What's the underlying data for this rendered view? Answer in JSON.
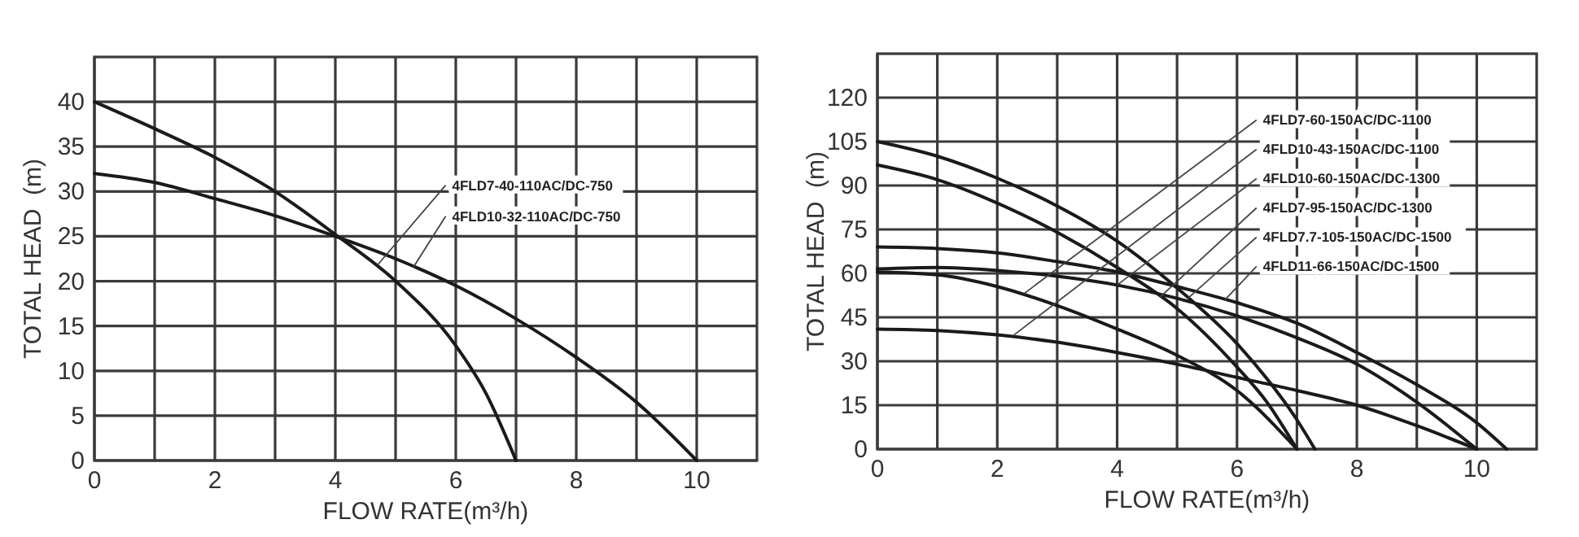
{
  "chart_data": [
    {
      "type": "line",
      "xlabel": "FLOW RATE(m³/h)",
      "ylabel": "TOTAL HEAD  (m)",
      "xlim": [
        0,
        11
      ],
      "ylim": [
        0,
        45
      ],
      "xticks": [
        0,
        {
          "value": 1,
          "label": null
        },
        2,
        {
          "value": 3,
          "label": null
        },
        4,
        {
          "value": 5,
          "label": null
        },
        6,
        {
          "value": 7,
          "label": null
        },
        8,
        {
          "value": 9,
          "label": null
        },
        10
      ],
      "yticks": [
        0,
        5,
        10,
        15,
        20,
        25,
        30,
        35,
        40
      ],
      "grid": true,
      "line_style": "solid",
      "series": [
        {
          "color": "#1a1a1a",
          "x": [
            0,
            1,
            2,
            3,
            4,
            5,
            6,
            6.5,
            7
          ],
          "values": [
            40,
            37,
            33.8,
            30,
            25.2,
            20,
            12.8,
            7.5,
            0
          ]
        },
        {
          "color": "#1a1a1a",
          "x": [
            0,
            1,
            2,
            3,
            4,
            5,
            6,
            7,
            8,
            9,
            10
          ],
          "values": [
            32,
            31,
            29.2,
            27.3,
            25,
            22.5,
            19.5,
            15.8,
            11.5,
            6.5,
            0
          ]
        }
      ],
      "annotations": [
        {
          "text": "4FLD7-40-110AC/DC-750",
          "x": 4.7,
          "y": 21.8
        },
        {
          "text": "4FLD10-32-110AC/DC-750",
          "x": 5.3,
          "y": 21.6
        }
      ]
    },
    {
      "type": "line",
      "xlabel": "FLOW RATE(m³/h)",
      "ylabel": "TOTAL HEAD  (m)",
      "xlim": [
        0,
        11
      ],
      "ylim": [
        0,
        135
      ],
      "xticks": [
        0,
        {
          "value": 1,
          "label": null
        },
        2,
        {
          "value": 3,
          "label": null
        },
        4,
        {
          "value": 5,
          "label": null
        },
        6,
        {
          "value": 7,
          "label": null
        },
        8,
        {
          "value": 9,
          "label": null
        },
        10
      ],
      "yticks": [
        0,
        15,
        30,
        45,
        60,
        75,
        90,
        105,
        120
      ],
      "grid": true,
      "line_style": "solid",
      "series": [
        {
          "color": "#1a1a1a",
          "x": [
            0,
            1,
            2,
            3,
            4,
            5,
            6,
            6.5,
            7,
            7.3
          ],
          "values": [
            105,
            100,
            92.5,
            83,
            71,
            55,
            36,
            24,
            10,
            0
          ]
        },
        {
          "color": "#1a1a1a",
          "x": [
            0,
            1,
            2,
            3,
            4,
            5,
            6,
            6.5,
            7
          ],
          "values": [
            97,
            92,
            84,
            74,
            62,
            48,
            28,
            16,
            0
          ]
        },
        {
          "color": "#1a1a1a",
          "x": [
            0,
            1,
            2,
            3,
            4,
            5,
            6,
            7,
            8,
            9,
            10,
            10.5
          ],
          "values": [
            69,
            68.5,
            67,
            64,
            60.5,
            55.5,
            50,
            43,
            33,
            22,
            9,
            0
          ]
        },
        {
          "color": "#1a1a1a",
          "x": [
            0,
            1,
            2,
            3,
            4,
            5,
            6,
            7,
            8,
            9,
            10
          ],
          "values": [
            61.5,
            62,
            61,
            59,
            56,
            51.5,
            45.5,
            38,
            29,
            16,
            0
          ]
        },
        {
          "color": "#1a1a1a",
          "x": [
            0,
            1,
            2,
            3,
            4,
            5,
            6,
            7
          ],
          "values": [
            60.5,
            59.5,
            55.5,
            49,
            41,
            32,
            20,
            0
          ]
        },
        {
          "color": "#1a1a1a",
          "x": [
            0,
            1,
            2,
            3,
            4,
            5,
            6,
            7,
            8,
            9,
            10
          ],
          "values": [
            41,
            40.5,
            39,
            36.5,
            33,
            29,
            24.5,
            20,
            15,
            8,
            0
          ]
        }
      ],
      "annotations": [
        {
          "text": "4FLD7-60-150AC/DC-1100",
          "x": 2.44,
          "y": 53
        },
        {
          "text": "4FLD10-43-150AC/DC-1100",
          "x": 2.28,
          "y": 39
        },
        {
          "text": "4FLD10-60-150AC/DC-1300",
          "x": 4.0,
          "y": 56
        },
        {
          "text": "4FLD7-95-150AC/DC-1300",
          "x": 4.72,
          "y": 52
        },
        {
          "text": "4FLD7.7-105-150AC/DC-1500",
          "x": 5.18,
          "y": 51.5
        },
        {
          "text": "4FLD11-66-150AC/DC-1500",
          "x": 5.8,
          "y": 51
        }
      ]
    }
  ]
}
